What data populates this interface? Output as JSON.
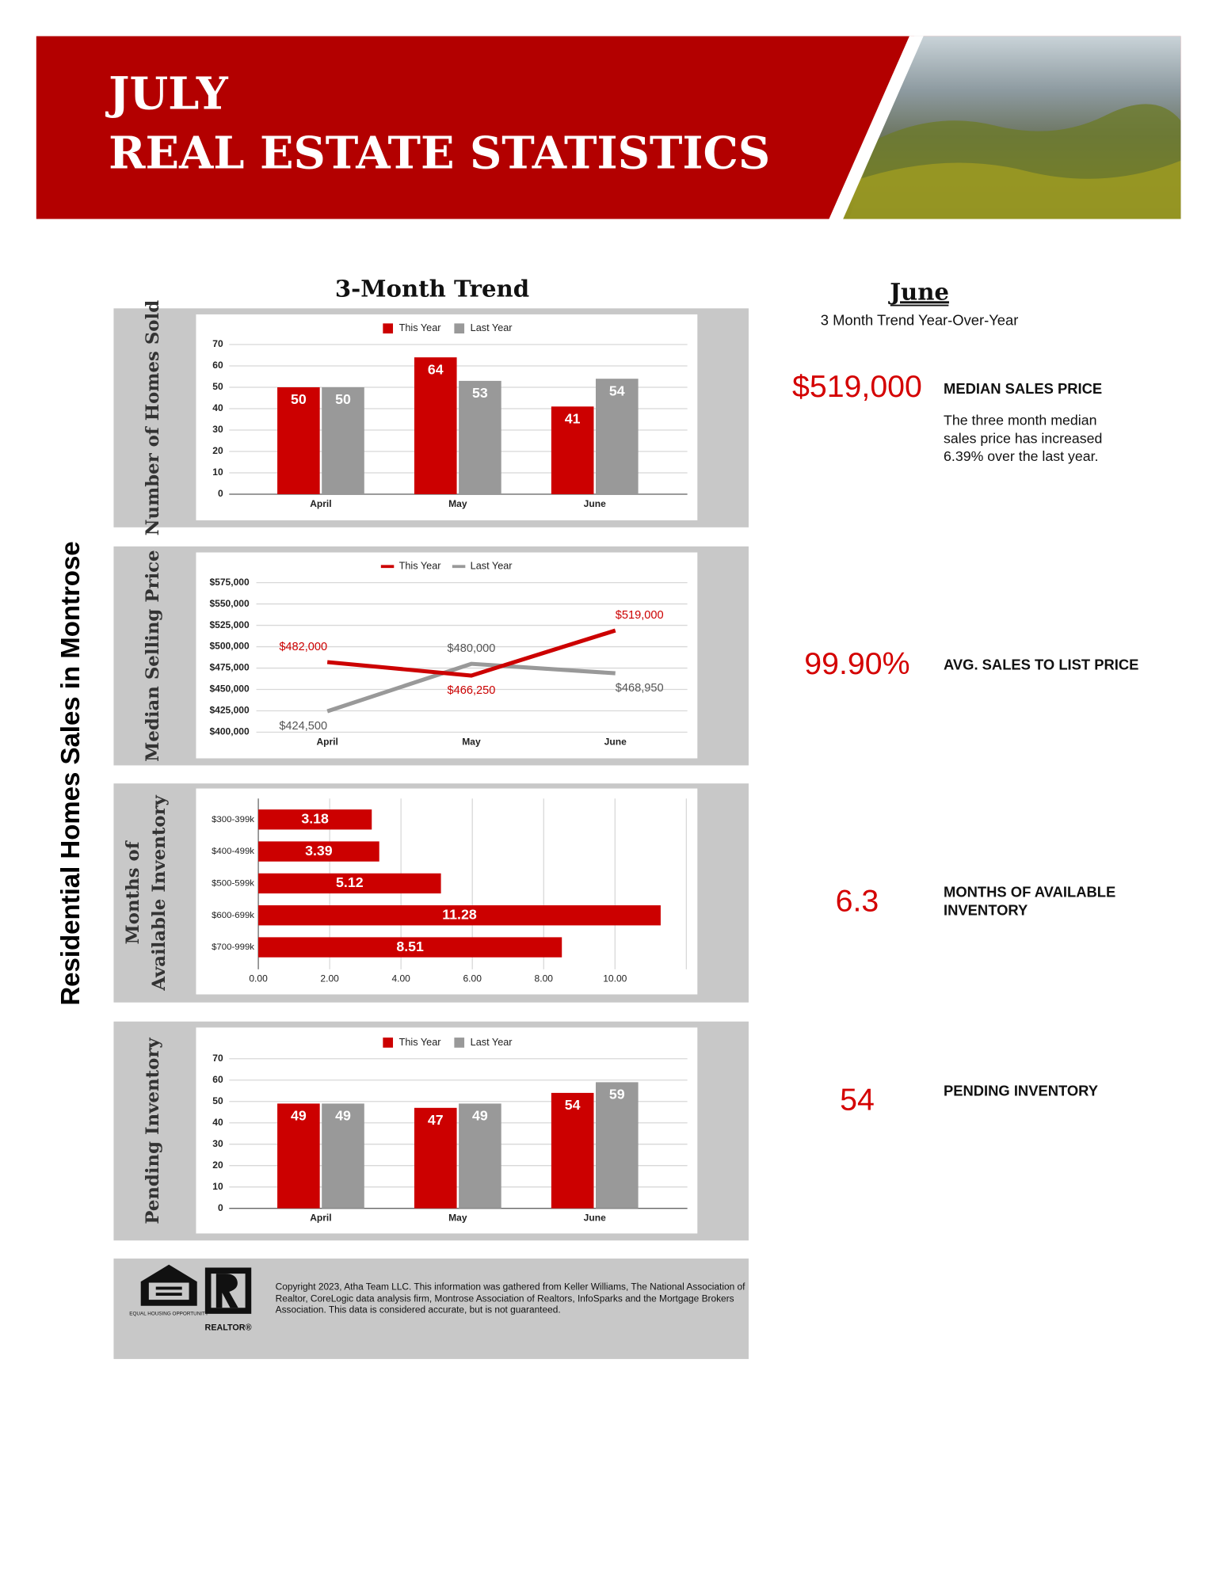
{
  "header": {
    "line1": "JULY",
    "line2": "REAL ESTATE STATISTICS"
  },
  "side_label": "Residential Homes Sales in Montrose",
  "trend_title": "3-Month Trend",
  "chart_data": [
    {
      "type": "bar",
      "y_label": "Number of Homes Sold",
      "categories": [
        "April",
        "May",
        "June"
      ],
      "series": [
        {
          "name": "This Year",
          "color": "#cc0000",
          "values": [
            50,
            64,
            41
          ]
        },
        {
          "name": "Last Year",
          "color": "#999999",
          "values": [
            50,
            53,
            54
          ]
        }
      ],
      "ylim": [
        0,
        70
      ],
      "yticks": [
        0,
        10,
        20,
        30,
        40,
        50,
        60,
        70
      ],
      "grid": true,
      "legend": "top"
    },
    {
      "type": "line",
      "y_label": "Median Selling Price",
      "categories": [
        "April",
        "May",
        "June"
      ],
      "series": [
        {
          "name": "This Year",
          "color": "#cc0000",
          "values": [
            482000,
            466250,
            519000
          ],
          "value_labels": [
            "$482,000",
            "$466,250",
            "$519,000"
          ]
        },
        {
          "name": "Last Year",
          "color": "#999999",
          "values": [
            424500,
            480000,
            468950
          ],
          "value_labels": [
            "$424,500",
            "$480,000",
            "$468,950"
          ]
        }
      ],
      "ylim": [
        400000,
        575000
      ],
      "yticks": [
        {
          "value": 400000,
          "label": "$400,000"
        },
        {
          "value": 425000,
          "label": "$425,000"
        },
        {
          "value": 450000,
          "label": "$450,000"
        },
        {
          "value": 475000,
          "label": "$475,000"
        },
        {
          "value": 500000,
          "label": "$500,000"
        },
        {
          "value": 525000,
          "label": "$525,000"
        },
        {
          "value": 550000,
          "label": "$550,000"
        },
        {
          "value": 575000,
          "label": "$575,000"
        }
      ],
      "grid": true,
      "legend": "top"
    },
    {
      "type": "bar",
      "horizontal": true,
      "y_label": "Months of Available Inventory",
      "categories": [
        "$300-399k",
        "$400-499k",
        "$500-599k",
        "$600-699k",
        "$700-999k"
      ],
      "values": [
        3.18,
        3.39,
        5.12,
        11.28,
        8.51
      ],
      "color": "#cc0000",
      "xlim": [
        0,
        12
      ],
      "xticks": [
        {
          "value": 0,
          "label": "0.00"
        },
        {
          "value": 2,
          "label": "2.00"
        },
        {
          "value": 4,
          "label": "4.00"
        },
        {
          "value": 6,
          "label": "6.00"
        },
        {
          "value": 8,
          "label": "8.00"
        },
        {
          "value": 10,
          "label": "10.00"
        }
      ],
      "grid": true
    },
    {
      "type": "bar",
      "y_label": "Pending Inventory",
      "categories": [
        "April",
        "May",
        "June"
      ],
      "series": [
        {
          "name": "This Year",
          "color": "#cc0000",
          "values": [
            49,
            47,
            54
          ]
        },
        {
          "name": "Last Year",
          "color": "#999999",
          "values": [
            49,
            49,
            59
          ]
        }
      ],
      "ylim": [
        0,
        70
      ],
      "yticks": [
        0,
        10,
        20,
        30,
        40,
        50,
        60,
        70
      ],
      "grid": true,
      "legend": "top"
    }
  ],
  "summary": {
    "title": "June",
    "subtitle": "3 Month Trend Year-Over-Year",
    "items": [
      {
        "value": "$519,000",
        "label": "MEDIAN SALES PRICE",
        "note": "The three month median sales price has increased 6.39% over the last year."
      },
      {
        "value": "99.90%",
        "label": "AVG. SALES TO LIST PRICE"
      },
      {
        "value": "6.3",
        "label": "MONTHS OF AVAILABLE INVENTORY"
      },
      {
        "value": "54",
        "label": "PENDING INVENTORY"
      }
    ]
  },
  "footer": {
    "text": "Copyright 2023, Atha Team LLC. This information was gathered from Keller Williams, The National Association of Realtor, CoreLogic data analysis firm, Montrose Association of Realtors, InfoSparks and the Mortgage Brokers Association. This data is considered accurate, but is not guaranteed.",
    "eho": "EQUAL HOUSING OPPORTUNITY",
    "realtor": "REALTOR®"
  }
}
